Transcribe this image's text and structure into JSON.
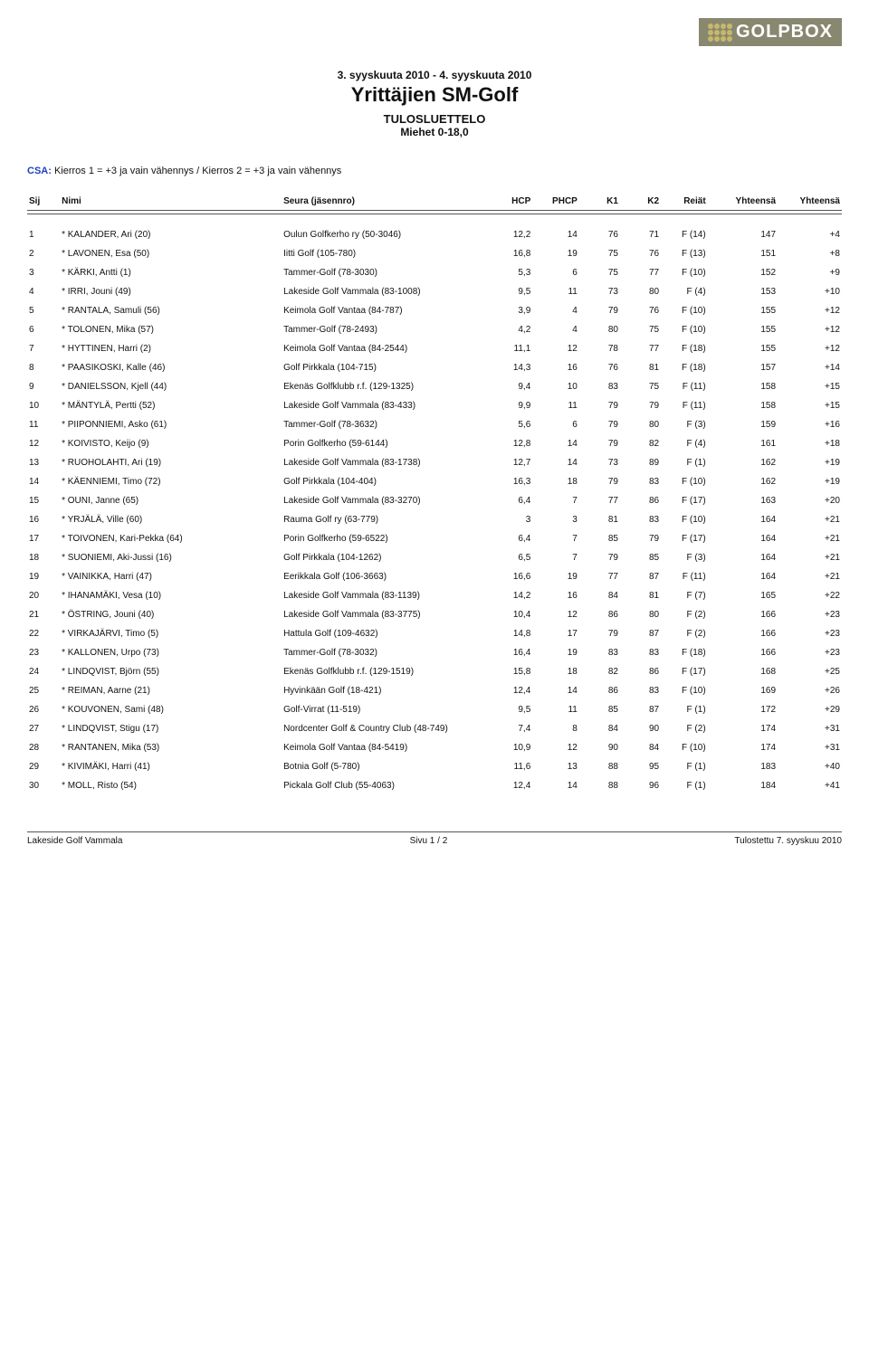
{
  "logo_text": "GOLPBOX",
  "date_range": "3. syyskuuta 2010 - 4. syyskuuta 2010",
  "main_title": "Yrittäjien SM-Golf",
  "subtitle1": "TULOSLUETTELO",
  "subtitle2": "Miehet 0-18,0",
  "csa_label": "CSA:",
  "csa_text": " Kierros 1 = +3 ja vain vähennys / Kierros 2 = +3 ja vain vähennys",
  "columns": {
    "sij": "Sij",
    "nimi": "Nimi",
    "seura": "Seura (jäsennro)",
    "hcp": "HCP",
    "phcp": "PHCP",
    "k1": "K1",
    "k2": "K2",
    "reiat": "Reiät",
    "yhteensa": "Yhteensä",
    "yhteensa2": "Yhteensä"
  },
  "rows": [
    {
      "sij": "1",
      "name": "* KALANDER, Ari (20)",
      "club": "Oulun Golfkerho ry (50-3046)",
      "hcp": "12,2",
      "phcp": "14",
      "k1": "76",
      "k2": "71",
      "reiat": "F (14)",
      "yt": "147",
      "diff": "+4"
    },
    {
      "sij": "2",
      "name": "* LAVONEN, Esa (50)",
      "club": "Iitti Golf (105-780)",
      "hcp": "16,8",
      "phcp": "19",
      "k1": "75",
      "k2": "76",
      "reiat": "F (13)",
      "yt": "151",
      "diff": "+8"
    },
    {
      "sij": "3",
      "name": "* KÄRKI, Antti (1)",
      "club": "Tammer-Golf (78-3030)",
      "hcp": "5,3",
      "phcp": "6",
      "k1": "75",
      "k2": "77",
      "reiat": "F (10)",
      "yt": "152",
      "diff": "+9"
    },
    {
      "sij": "4",
      "name": "* IRRI, Jouni (49)",
      "club": "Lakeside Golf Vammala (83-1008)",
      "hcp": "9,5",
      "phcp": "11",
      "k1": "73",
      "k2": "80",
      "reiat": "F (4)",
      "yt": "153",
      "diff": "+10"
    },
    {
      "sij": "5",
      "name": "* RANTALA, Samuli (56)",
      "club": "Keimola Golf Vantaa (84-787)",
      "hcp": "3,9",
      "phcp": "4",
      "k1": "79",
      "k2": "76",
      "reiat": "F (10)",
      "yt": "155",
      "diff": "+12"
    },
    {
      "sij": "6",
      "name": "* TOLONEN, Mika (57)",
      "club": "Tammer-Golf (78-2493)",
      "hcp": "4,2",
      "phcp": "4",
      "k1": "80",
      "k2": "75",
      "reiat": "F (10)",
      "yt": "155",
      "diff": "+12"
    },
    {
      "sij": "7",
      "name": "* HYTTINEN, Harri (2)",
      "club": "Keimola Golf Vantaa (84-2544)",
      "hcp": "11,1",
      "phcp": "12",
      "k1": "78",
      "k2": "77",
      "reiat": "F (18)",
      "yt": "155",
      "diff": "+12"
    },
    {
      "sij": "8",
      "name": "* PAASIKOSKI, Kalle (46)",
      "club": "Golf Pirkkala (104-715)",
      "hcp": "14,3",
      "phcp": "16",
      "k1": "76",
      "k2": "81",
      "reiat": "F (18)",
      "yt": "157",
      "diff": "+14"
    },
    {
      "sij": "9",
      "name": "* DANIELSSON, Kjell (44)",
      "club": "Ekenäs Golfklubb r.f. (129-1325)",
      "hcp": "9,4",
      "phcp": "10",
      "k1": "83",
      "k2": "75",
      "reiat": "F (11)",
      "yt": "158",
      "diff": "+15"
    },
    {
      "sij": "10",
      "name": "* MÄNTYLÄ, Pertti (52)",
      "club": "Lakeside Golf Vammala (83-433)",
      "hcp": "9,9",
      "phcp": "11",
      "k1": "79",
      "k2": "79",
      "reiat": "F (11)",
      "yt": "158",
      "diff": "+15"
    },
    {
      "sij": "11",
      "name": "* PIIPONNIEMI, Asko (61)",
      "club": "Tammer-Golf (78-3632)",
      "hcp": "5,6",
      "phcp": "6",
      "k1": "79",
      "k2": "80",
      "reiat": "F (3)",
      "yt": "159",
      "diff": "+16"
    },
    {
      "sij": "12",
      "name": "* KOIVISTO, Keijo (9)",
      "club": "Porin Golfkerho (59-6144)",
      "hcp": "12,8",
      "phcp": "14",
      "k1": "79",
      "k2": "82",
      "reiat": "F (4)",
      "yt": "161",
      "diff": "+18"
    },
    {
      "sij": "13",
      "name": "* RUOHOLAHTI, Ari (19)",
      "club": "Lakeside Golf Vammala (83-1738)",
      "hcp": "12,7",
      "phcp": "14",
      "k1": "73",
      "k2": "89",
      "reiat": "F (1)",
      "yt": "162",
      "diff": "+19"
    },
    {
      "sij": "14",
      "name": "* KÄENNIEMI, Timo (72)",
      "club": "Golf Pirkkala (104-404)",
      "hcp": "16,3",
      "phcp": "18",
      "k1": "79",
      "k2": "83",
      "reiat": "F (10)",
      "yt": "162",
      "diff": "+19"
    },
    {
      "sij": "15",
      "name": "* OUNI, Janne (65)",
      "club": "Lakeside Golf Vammala (83-3270)",
      "hcp": "6,4",
      "phcp": "7",
      "k1": "77",
      "k2": "86",
      "reiat": "F (17)",
      "yt": "163",
      "diff": "+20"
    },
    {
      "sij": "16",
      "name": "* YRJÄLÄ, Ville (60)",
      "club": "Rauma Golf ry (63-779)",
      "hcp": "3",
      "phcp": "3",
      "k1": "81",
      "k2": "83",
      "reiat": "F (10)",
      "yt": "164",
      "diff": "+21"
    },
    {
      "sij": "17",
      "name": "* TOIVONEN, Kari-Pekka (64)",
      "club": "Porin Golfkerho (59-6522)",
      "hcp": "6,4",
      "phcp": "7",
      "k1": "85",
      "k2": "79",
      "reiat": "F (17)",
      "yt": "164",
      "diff": "+21"
    },
    {
      "sij": "18",
      "name": "* SUONIEMI, Aki-Jussi (16)",
      "club": "Golf Pirkkala (104-1262)",
      "hcp": "6,5",
      "phcp": "7",
      "k1": "79",
      "k2": "85",
      "reiat": "F (3)",
      "yt": "164",
      "diff": "+21"
    },
    {
      "sij": "19",
      "name": "* VAINIKKA, Harri (47)",
      "club": "Eerikkala Golf (106-3663)",
      "hcp": "16,6",
      "phcp": "19",
      "k1": "77",
      "k2": "87",
      "reiat": "F (11)",
      "yt": "164",
      "diff": "+21"
    },
    {
      "sij": "20",
      "name": "* IHANAMÄKI, Vesa (10)",
      "club": "Lakeside Golf Vammala (83-1139)",
      "hcp": "14,2",
      "phcp": "16",
      "k1": "84",
      "k2": "81",
      "reiat": "F (7)",
      "yt": "165",
      "diff": "+22"
    },
    {
      "sij": "21",
      "name": "* ÖSTRING, Jouni (40)",
      "club": "Lakeside Golf Vammala (83-3775)",
      "hcp": "10,4",
      "phcp": "12",
      "k1": "86",
      "k2": "80",
      "reiat": "F (2)",
      "yt": "166",
      "diff": "+23"
    },
    {
      "sij": "22",
      "name": "* VIRKAJÄRVI, Timo (5)",
      "club": "Hattula Golf (109-4632)",
      "hcp": "14,8",
      "phcp": "17",
      "k1": "79",
      "k2": "87",
      "reiat": "F (2)",
      "yt": "166",
      "diff": "+23"
    },
    {
      "sij": "23",
      "name": "* KALLONEN, Urpo (73)",
      "club": "Tammer-Golf (78-3032)",
      "hcp": "16,4",
      "phcp": "19",
      "k1": "83",
      "k2": "83",
      "reiat": "F (18)",
      "yt": "166",
      "diff": "+23"
    },
    {
      "sij": "24",
      "name": "* LINDQVIST, Björn (55)",
      "club": "Ekenäs Golfklubb r.f. (129-1519)",
      "hcp": "15,8",
      "phcp": "18",
      "k1": "82",
      "k2": "86",
      "reiat": "F (17)",
      "yt": "168",
      "diff": "+25"
    },
    {
      "sij": "25",
      "name": "* REIMAN, Aarne (21)",
      "club": "Hyvinkään Golf (18-421)",
      "hcp": "12,4",
      "phcp": "14",
      "k1": "86",
      "k2": "83",
      "reiat": "F (10)",
      "yt": "169",
      "diff": "+26"
    },
    {
      "sij": "26",
      "name": "* KOUVONEN, Sami (48)",
      "club": "Golf-Virrat (11-519)",
      "hcp": "9,5",
      "phcp": "11",
      "k1": "85",
      "k2": "87",
      "reiat": "F (1)",
      "yt": "172",
      "diff": "+29"
    },
    {
      "sij": "27",
      "name": "* LINDQVIST, Stigu (17)",
      "club": "Nordcenter Golf & Country Club (48-749)",
      "hcp": "7,4",
      "phcp": "8",
      "k1": "84",
      "k2": "90",
      "reiat": "F (2)",
      "yt": "174",
      "diff": "+31"
    },
    {
      "sij": "28",
      "name": "* RANTANEN, Mika (53)",
      "club": "Keimola Golf Vantaa (84-5419)",
      "hcp": "10,9",
      "phcp": "12",
      "k1": "90",
      "k2": "84",
      "reiat": "F (10)",
      "yt": "174",
      "diff": "+31"
    },
    {
      "sij": "29",
      "name": "* KIVIMÄKI, Harri (41)",
      "club": "Botnia Golf (5-780)",
      "hcp": "11,6",
      "phcp": "13",
      "k1": "88",
      "k2": "95",
      "reiat": "F (1)",
      "yt": "183",
      "diff": "+40"
    },
    {
      "sij": "30",
      "name": "* MOLL, Risto (54)",
      "club": "Pickala Golf Club (55-4063)",
      "hcp": "12,4",
      "phcp": "14",
      "k1": "88",
      "k2": "96",
      "reiat": "F (1)",
      "yt": "184",
      "diff": "+41"
    }
  ],
  "footer": {
    "left": "Lakeside Golf Vammala",
    "center": "Sivu 1 / 2",
    "right": "Tulostettu 7. syyskuu 2010"
  }
}
